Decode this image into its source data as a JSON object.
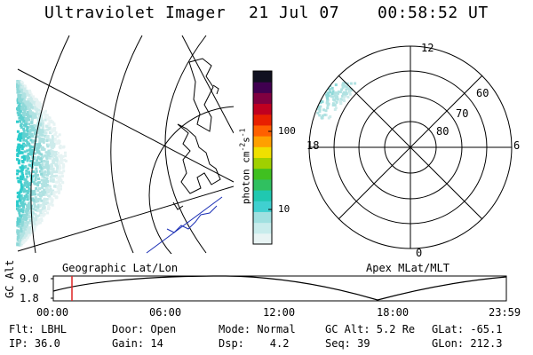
{
  "header": {
    "instrument": "Ultraviolet Imager",
    "date": "21 Jul 07",
    "time": "00:58:52 UT"
  },
  "colorbar": {
    "unit_label": "photon cm",
    "ticks": [
      "100",
      "10"
    ],
    "colors": [
      "#e8f4f4",
      "#c8ecec",
      "#a0e0e0",
      "#40d0d0",
      "#20c8b0",
      "#30c060",
      "#40c020",
      "#a0d000",
      "#f0e000",
      "#ffa000",
      "#ff6000",
      "#e82000",
      "#c00020",
      "#800040",
      "#400050",
      "#101020"
    ]
  },
  "left_panel": {
    "caption": "Geographic Lat/Lon"
  },
  "right_panel": {
    "caption": "Apex MLat/MLT",
    "mlt_labels": {
      "top": "12",
      "left": "18",
      "right": "6",
      "bottom": "0"
    },
    "mlat_labels": [
      "60",
      "70",
      "80"
    ]
  },
  "timeline": {
    "ylabel": "GC Alt",
    "y_ticks": [
      "9.0",
      "1.8"
    ],
    "x_ticks": [
      "00:00",
      "06:00",
      "12:00",
      "18:00",
      "23:59"
    ],
    "marker_time": "00:58:52"
  },
  "status": {
    "filter": "Flt: LBHL",
    "ip": "IP: 36.0",
    "door": "Door: Open",
    "gain": "Gain: 14",
    "mode": "Mode: Normal",
    "dsp": "Dsp:    4.2",
    "gc_alt": "GC Alt: 5.2 Re",
    "seq": "Seq: 39",
    "glat": "GLat: -65.1",
    "glon": "GLon: 212.3"
  }
}
